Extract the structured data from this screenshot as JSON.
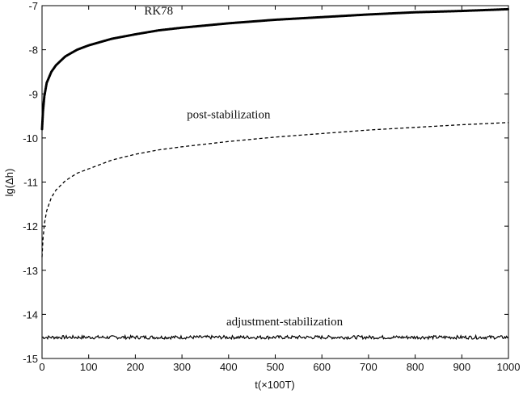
{
  "chart_data": {
    "type": "line",
    "xlabel": "t(×100T)",
    "ylabel": "lg(Δh)",
    "xlim": [
      0,
      1000
    ],
    "ylim": [
      -15,
      -7
    ],
    "xticks": [
      0,
      100,
      200,
      300,
      400,
      500,
      600,
      700,
      800,
      900,
      1000
    ],
    "yticks": [
      -15,
      -14,
      -13,
      -12,
      -11,
      -10,
      -9,
      -8,
      -7
    ],
    "grid": false,
    "series": [
      {
        "name": "RK78",
        "style": "dotted-thick",
        "color": "#000000",
        "x": [
          0,
          2,
          5,
          10,
          20,
          30,
          50,
          75,
          100,
          150,
          200,
          250,
          300,
          400,
          500,
          600,
          700,
          800,
          900,
          1000
        ],
        "y": [
          -9.8,
          -9.4,
          -9.05,
          -8.75,
          -8.5,
          -8.35,
          -8.15,
          -8.0,
          -7.9,
          -7.75,
          -7.65,
          -7.56,
          -7.5,
          -7.4,
          -7.32,
          -7.26,
          -7.2,
          -7.15,
          -7.12,
          -7.08
        ]
      },
      {
        "name": "post-stabilization",
        "style": "dashed",
        "color": "#000000",
        "x": [
          0,
          2,
          5,
          10,
          20,
          30,
          50,
          75,
          100,
          150,
          200,
          250,
          300,
          400,
          500,
          600,
          700,
          800,
          900,
          1000
        ],
        "y": [
          -12.7,
          -12.3,
          -11.95,
          -11.65,
          -11.35,
          -11.18,
          -10.97,
          -10.8,
          -10.7,
          -10.5,
          -10.37,
          -10.27,
          -10.2,
          -10.08,
          -9.98,
          -9.9,
          -9.82,
          -9.76,
          -9.7,
          -9.65
        ]
      },
      {
        "name": "adjustment-stabilization",
        "style": "noisy-solid",
        "color": "#000000",
        "x": [
          0,
          1000
        ],
        "y": [
          -14.52,
          -14.52
        ],
        "noise_amplitude": 0.04
      }
    ],
    "annotations": [
      {
        "text": "RK78",
        "x": 250,
        "y": -7.2
      },
      {
        "text": "post-stabilization",
        "x": 400,
        "y": -9.55
      },
      {
        "text": "adjustment-stabilization",
        "x": 520,
        "y": -14.25
      }
    ]
  }
}
